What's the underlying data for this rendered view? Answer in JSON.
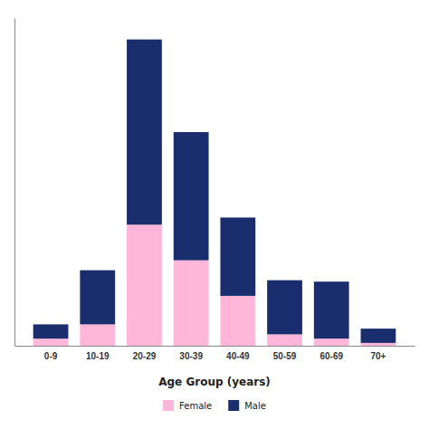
{
  "chart_data": {
    "type": "bar",
    "stacked": true,
    "xlabel": "Age Group (years)",
    "categories": [
      "0-9",
      "10-19",
      "20-29",
      "30-39",
      "40-49",
      "50-59",
      "60-69",
      "70+"
    ],
    "series": [
      {
        "name": "Female",
        "color": "#ffb6d9",
        "values": [
          5,
          15,
          85,
          60,
          35,
          8,
          5,
          2
        ]
      },
      {
        "name": "Male",
        "color": "#1a2e6e",
        "values": [
          10,
          38,
          130,
          90,
          55,
          38,
          40,
          10
        ]
      }
    ],
    "ylim": [
      0,
      230
    ],
    "grid": false,
    "tick_labels": "x",
    "legend": "bottom"
  }
}
